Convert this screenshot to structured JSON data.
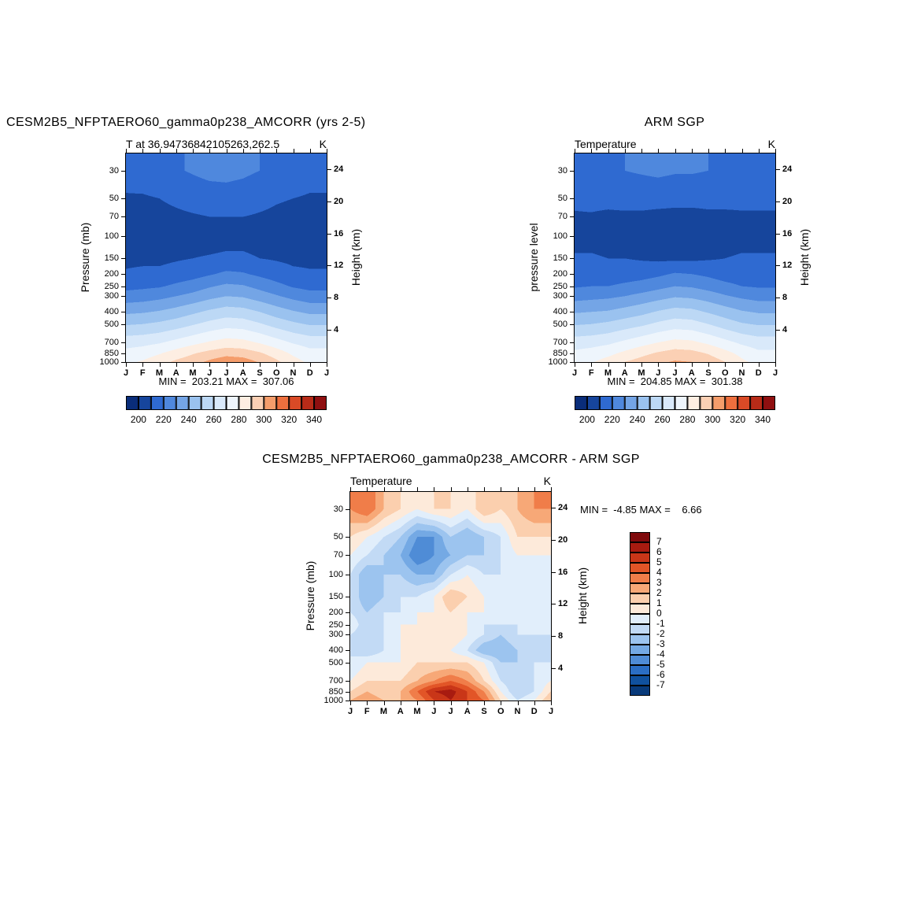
{
  "chart_data": [
    {
      "type": "heatmap",
      "title": "CESM2B5_NFPTAERO60_gamma0p238_AMCORR (yrs 2-5)",
      "subtitle": "T at 36.94736842105263,262.5",
      "unit": "K",
      "ylabel_left": "Pressure (mb)",
      "ylabel_right": "Height (km)",
      "minmax_label": "MIN =  203.21 MAX =  307.06",
      "min": 203.21,
      "max": 307.06,
      "x_labels": [
        "J",
        "F",
        "M",
        "A",
        "M",
        "J",
        "J",
        "A",
        "S",
        "O",
        "N",
        "D",
        "J"
      ],
      "pressure_levels": [
        1000,
        850,
        700,
        500,
        400,
        300,
        250,
        200,
        150,
        100,
        70,
        50,
        30
      ],
      "height_ticks_km": [
        4,
        8,
        12,
        16,
        20,
        24
      ],
      "levels": [
        200,
        210,
        220,
        230,
        240,
        250,
        260,
        270,
        280,
        290,
        300,
        310,
        320,
        330,
        340
      ],
      "colorbar_labels": [
        "200",
        "220",
        "240",
        "260",
        "280",
        "300",
        "320",
        "340"
      ],
      "palette": [
        "#0a2d7a",
        "#16459c",
        "#2f6ad1",
        "#4f88dd",
        "#74a5e6",
        "#9ac2ef",
        "#bcd8f5",
        "#d9e9fa",
        "#eef5fc",
        "#fdeee2",
        "#fbd0b4",
        "#f59d6b",
        "#ee6f3e",
        "#d94a26",
        "#b82b18",
        "#8f0f10"
      ],
      "values": [
        [
          278,
          281,
          286,
          292,
          296,
          302,
          307,
          305,
          299,
          292,
          284,
          278,
          278
        ],
        [
          273,
          275,
          279,
          284,
          289,
          293,
          296,
          295,
          291,
          285,
          278,
          273,
          273
        ],
        [
          266,
          267,
          269,
          273,
          277,
          281,
          284,
          283,
          279,
          274,
          269,
          266,
          266
        ],
        [
          249,
          250,
          252,
          255,
          259,
          263,
          266,
          265,
          261,
          256,
          252,
          249,
          249
        ],
        [
          238,
          239,
          241,
          244,
          248,
          252,
          255,
          254,
          250,
          245,
          241,
          238,
          238
        ],
        [
          224,
          225,
          227,
          230,
          233,
          237,
          240,
          239,
          235,
          231,
          227,
          224,
          224
        ],
        [
          217,
          218,
          219,
          222,
          225,
          229,
          232,
          231,
          227,
          223,
          219,
          217,
          217
        ],
        [
          211,
          212,
          212,
          214,
          216,
          219,
          222,
          221,
          218,
          215,
          212,
          211,
          211
        ],
        [
          208,
          208,
          208,
          209,
          210,
          211,
          212,
          212,
          210,
          209,
          208,
          208,
          208
        ],
        [
          205,
          204,
          204,
          205,
          205,
          205,
          206,
          206,
          205,
          205,
          205,
          205,
          205
        ],
        [
          206,
          206,
          207,
          208,
          209,
          210,
          210,
          210,
          209,
          208,
          207,
          206,
          206
        ],
        [
          209,
          209,
          210,
          212,
          214,
          215,
          216,
          215,
          213,
          211,
          210,
          209,
          209
        ],
        [
          214,
          215,
          217,
          219,
          221,
          223,
          223,
          222,
          220,
          218,
          216,
          214,
          214
        ]
      ]
    },
    {
      "type": "heatmap",
      "title": "ARM SGP",
      "subtitle": "Temperature",
      "unit": "K",
      "ylabel_left": "pressure level",
      "ylabel_right": "Height (km)",
      "minmax_label": "MIN =  204.85 MAX =  301.38",
      "min": 204.85,
      "max": 301.38,
      "x_labels": [
        "J",
        "F",
        "M",
        "A",
        "M",
        "J",
        "J",
        "A",
        "S",
        "O",
        "N",
        "D",
        "J"
      ],
      "pressure_levels": [
        1000,
        850,
        700,
        500,
        400,
        300,
        250,
        200,
        150,
        100,
        70,
        50,
        30
      ],
      "height_ticks_km": [
        4,
        8,
        12,
        16,
        20,
        24
      ],
      "levels": [
        200,
        210,
        220,
        230,
        240,
        250,
        260,
        270,
        280,
        290,
        300,
        310,
        320,
        330,
        340
      ],
      "colorbar_labels": [
        "200",
        "220",
        "240",
        "260",
        "280",
        "300",
        "320",
        "340"
      ],
      "palette": [
        "#0a2d7a",
        "#16459c",
        "#2f6ad1",
        "#4f88dd",
        "#74a5e6",
        "#9ac2ef",
        "#bcd8f5",
        "#d9e9fa",
        "#eef5fc",
        "#fdeee2",
        "#fbd0b4",
        "#f59d6b",
        "#ee6f3e",
        "#d94a26",
        "#b82b18",
        "#8f0f10"
      ],
      "values": [
        [
          276,
          279,
          284,
          290,
          294,
          298,
          301,
          300,
          296,
          290,
          282,
          277,
          276
        ],
        [
          272,
          274,
          277,
          282,
          287,
          291,
          294,
          293,
          289,
          283,
          277,
          272,
          272
        ],
        [
          265,
          266,
          268,
          272,
          276,
          280,
          283,
          282,
          278,
          273,
          268,
          265,
          265
        ],
        [
          249,
          250,
          252,
          255,
          258,
          262,
          265,
          264,
          260,
          255,
          251,
          249,
          249
        ],
        [
          239,
          240,
          241,
          244,
          247,
          251,
          254,
          253,
          249,
          245,
          241,
          239,
          239
        ],
        [
          226,
          227,
          228,
          230,
          233,
          236,
          239,
          238,
          235,
          231,
          228,
          226,
          226
        ],
        [
          219,
          220,
          220,
          222,
          224,
          227,
          230,
          229,
          226,
          223,
          220,
          219,
          219
        ],
        [
          213,
          214,
          214,
          215,
          216,
          218,
          221,
          220,
          218,
          215,
          214,
          213,
          213
        ],
        [
          211,
          211,
          210,
          210,
          209,
          208,
          208,
          208,
          209,
          210,
          211,
          211,
          211
        ],
        [
          207,
          207,
          206,
          206,
          205,
          205,
          205,
          205,
          205,
          206,
          207,
          207,
          207
        ],
        [
          209,
          209,
          208,
          208,
          208,
          207,
          207,
          207,
          208,
          208,
          209,
          209,
          209
        ],
        [
          212,
          213,
          213,
          214,
          214,
          214,
          213,
          213,
          213,
          213,
          212,
          212,
          212
        ],
        [
          217,
          218,
          219,
          220,
          221,
          222,
          221,
          221,
          220,
          219,
          218,
          217,
          217
        ]
      ]
    },
    {
      "type": "heatmap",
      "title": "CESM2B5_NFPTAERO60_gamma0p238_AMCORR - ARM SGP",
      "subtitle": "Temperature",
      "unit": "K",
      "ylabel_left": "Pressure (mb)",
      "ylabel_right": "Height (km)",
      "minmax_label": "MIN =  -4.85 MAX =    6.66",
      "min": -4.85,
      "max": 6.66,
      "x_labels": [
        "J",
        "F",
        "M",
        "A",
        "M",
        "J",
        "J",
        "A",
        "S",
        "O",
        "N",
        "D",
        "J"
      ],
      "pressure_levels": [
        1000,
        850,
        700,
        500,
        400,
        300,
        250,
        200,
        150,
        100,
        70,
        50,
        30
      ],
      "height_ticks_km": [
        4,
        8,
        12,
        16,
        20,
        24
      ],
      "levels": [
        -7,
        -6,
        -5,
        -4,
        -3,
        -2,
        -1,
        0,
        1,
        2,
        3,
        4,
        5,
        6,
        7
      ],
      "colorbar_labels": [
        "7",
        "6",
        "5",
        "4",
        "3",
        "2",
        "1",
        "0",
        "-1",
        "-2",
        "-3",
        "-4",
        "-5",
        "-6",
        "-7"
      ],
      "palette": [
        "#083a7a",
        "#10519e",
        "#2b6ec4",
        "#4f8cd6",
        "#74a9e4",
        "#9cc4ef",
        "#c2daf5",
        "#e1eefb",
        "#fdeada",
        "#fbcfae",
        "#f7a877",
        "#f07d49",
        "#e25527",
        "#c93618",
        "#a81b10",
        "#7f0a0c"
      ],
      "values": [
        [
          2,
          3,
          2,
          2,
          3,
          5,
          6,
          5,
          4,
          1,
          -1,
          0,
          2
        ],
        [
          1,
          2,
          1,
          2,
          4,
          6,
          6.5,
          5,
          3,
          0,
          -2,
          -1,
          1
        ],
        [
          0,
          1,
          1,
          1,
          2,
          3,
          4,
          3,
          1,
          -1,
          -2,
          -1,
          0
        ],
        [
          -1,
          0,
          0,
          0,
          1,
          1,
          1,
          1,
          0,
          -2,
          -2,
          -1,
          -1
        ],
        [
          -1,
          -2,
          -1,
          0,
          0,
          1,
          0,
          -1,
          -3,
          -3,
          -2,
          -2,
          -1
        ],
        [
          -1,
          -2,
          -1,
          0,
          1,
          0,
          1,
          0,
          -1,
          -2,
          -1,
          -1,
          -1
        ],
        [
          0,
          -2,
          -1,
          0,
          0,
          1,
          0,
          0,
          -1,
          -1,
          -1,
          0,
          0
        ],
        [
          -1,
          -2,
          -1,
          -1,
          0,
          0,
          1,
          0,
          0,
          -1,
          -1,
          -1,
          -1
        ],
        [
          -1,
          -3,
          -2,
          -1,
          -1,
          0,
          2,
          1,
          0,
          -1,
          -1,
          -1,
          -1
        ],
        [
          -1,
          -3,
          -2,
          -2,
          -3,
          -3,
          -1,
          0,
          -1,
          -1,
          -1,
          -1,
          -1
        ],
        [
          0,
          -1,
          -2,
          -3,
          -5,
          -4,
          -3,
          -2,
          -2,
          -1,
          0,
          0,
          0
        ],
        [
          1,
          0,
          -1,
          -2,
          -4,
          -4,
          -2,
          -3,
          -2,
          -1,
          1,
          1,
          1
        ],
        [
          3,
          4,
          2,
          1,
          0,
          1,
          1,
          0,
          2,
          1,
          2,
          3,
          3
        ]
      ]
    }
  ]
}
